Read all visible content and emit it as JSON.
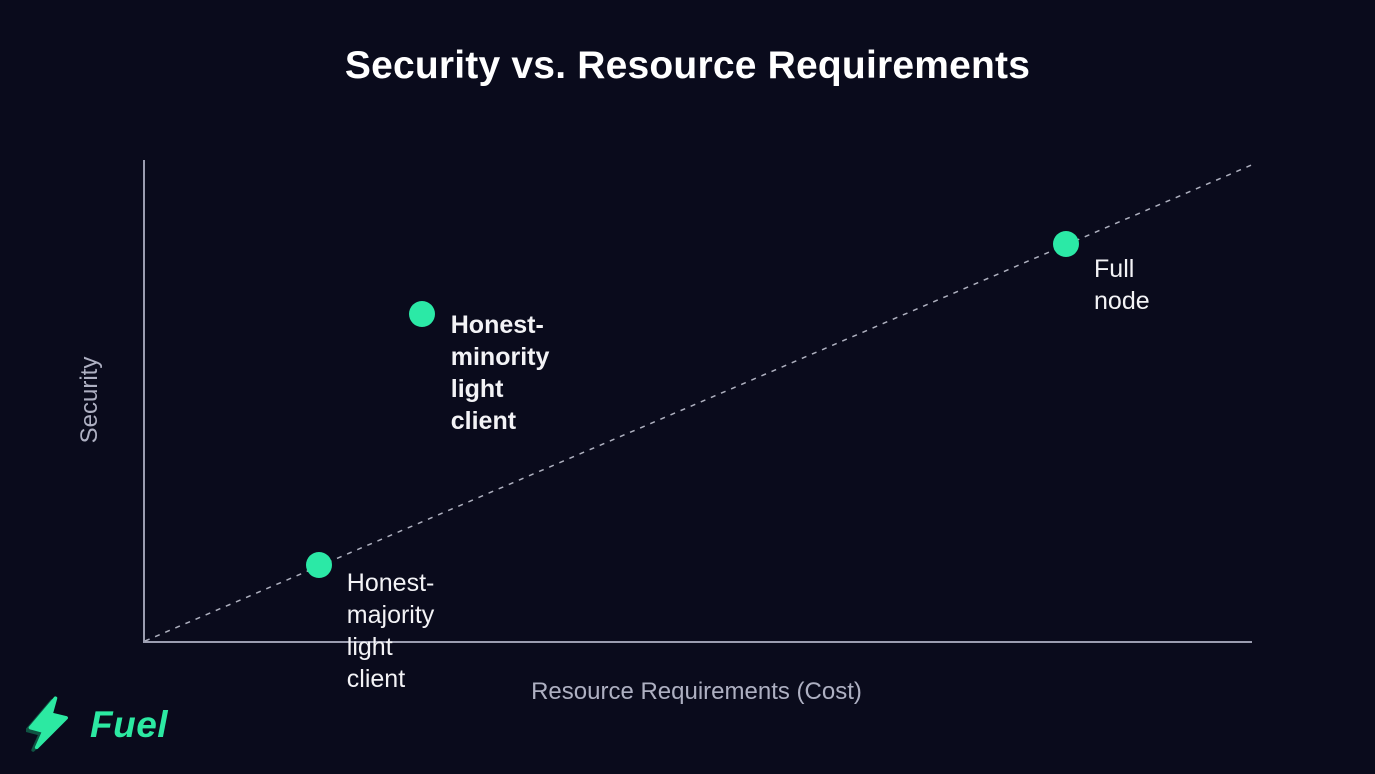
{
  "chart_data": {
    "type": "scatter",
    "title": "Security vs. Resource Requirements",
    "xlabel": "Resource Requirements (Cost)",
    "ylabel": "Security",
    "xlim": [
      0,
      100
    ],
    "ylim": [
      0,
      100
    ],
    "grid": false,
    "tick_labels": "none",
    "trendline": {
      "style": "dashed",
      "x1": 0,
      "y1": 0,
      "x2": 100,
      "y2": 99
    },
    "points": [
      {
        "id": "honest-minority-light-client",
        "label": "Honest-minority\nlight client",
        "x": 25,
        "y": 68,
        "emphasized": true
      },
      {
        "id": "full-node",
        "label": "Full node",
        "x": 83.2,
        "y": 82.5,
        "emphasized": false
      },
      {
        "id": "honest-majority-light-client",
        "label": "Honest-majority\nlight client",
        "x": 15.7,
        "y": 15.8,
        "emphasized": false
      }
    ],
    "point_color": "#2be9a6"
  },
  "branding": {
    "logo_text": "Fuel",
    "logo_icon": "lightning-bolt",
    "logo_color": "#2ce9a2"
  },
  "colors": {
    "background": "#0a0b1c",
    "title_text": "#ffffff",
    "axis_line": "#9b9db0",
    "axis_label_text": "#aeb0c2",
    "point_label_text": "#f3f3f6",
    "trendline": "#aeb0bf"
  }
}
